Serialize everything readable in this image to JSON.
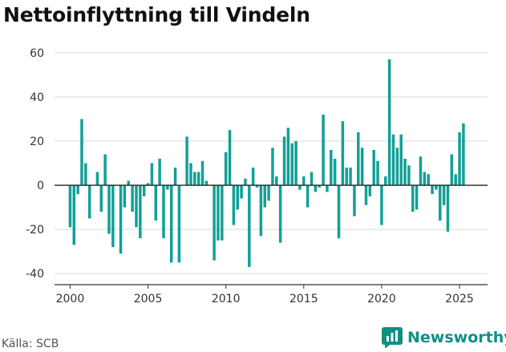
{
  "title": "Nettoinflyttning till Vindeln",
  "source": "Källa: SCB",
  "brand": {
    "name": "Newsworthy",
    "icon": "newsworthy-logo-icon",
    "color": "#0f8f85"
  },
  "chart_data": {
    "type": "bar",
    "ylim": [
      -45,
      65
    ],
    "yticks": [
      -40,
      -20,
      0,
      20,
      40,
      60
    ],
    "xlim": [
      1999.0,
      2026.8
    ],
    "xticks": [
      2000,
      2005,
      2010,
      2015,
      2020,
      2025
    ],
    "grid": true,
    "bar_color": "#12a096",
    "zero_line_color": "#222222",
    "values": [
      -19,
      -27,
      -4,
      30,
      10,
      -15,
      0,
      6,
      -12,
      14,
      -22,
      -28,
      0,
      -31,
      -10,
      2,
      -12,
      -19,
      -24,
      -5,
      1,
      10,
      -16,
      12,
      -24,
      -2,
      -35,
      8,
      -35,
      0,
      22,
      10,
      6,
      6,
      11,
      2,
      0,
      -34,
      -25,
      -25,
      15,
      25,
      -18,
      -11,
      -6,
      3,
      -37,
      8,
      -1,
      -23,
      -10,
      -7,
      17,
      4,
      -26,
      22,
      26,
      19,
      20,
      -2,
      4,
      -10,
      6,
      -3,
      -1,
      32,
      -3,
      16,
      12,
      -24,
      29,
      8,
      8,
      -14,
      24,
      17,
      -9,
      -5,
      16,
      11,
      -18,
      4,
      57,
      23,
      17,
      23,
      12,
      9,
      -12,
      -11,
      13,
      6,
      5,
      -4,
      -2,
      -16,
      -9,
      -21,
      14,
      5,
      24,
      28
    ]
  }
}
